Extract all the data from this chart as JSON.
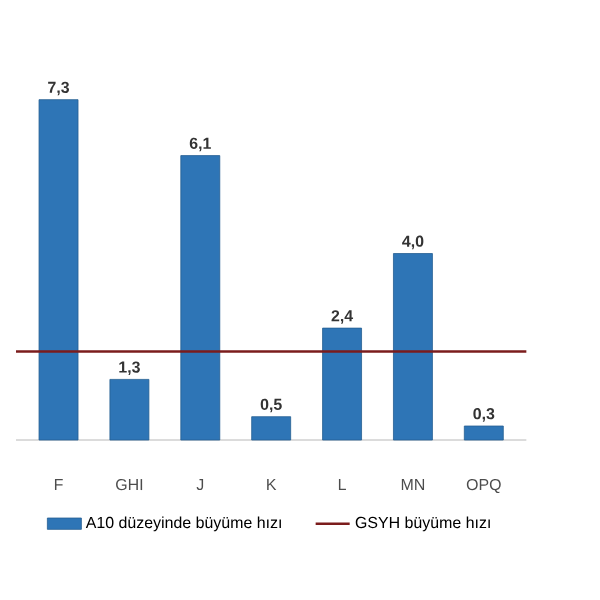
{
  "chart_data": {
    "type": "bar",
    "categories": [
      "F",
      "GHI",
      "J",
      "K",
      "L",
      "MN",
      "OPQ"
    ],
    "series": [
      {
        "name": "A10 düzeyinde büyüme hızı",
        "color": "#2e75b6",
        "values": [
          7.3,
          1.3,
          6.1,
          0.5,
          2.4,
          4.0,
          0.3
        ],
        "value_labels": [
          "7,3",
          "1,3",
          "6,1",
          "0,5",
          "2,4",
          "4,0",
          "0,3"
        ]
      }
    ],
    "ref_lines": [
      {
        "axis": "y",
        "value": 1.9,
        "label": "GSYH büyüme hızı",
        "color": "#7b1c1c"
      }
    ],
    "tick_labels": "x",
    "legend": "bottom"
  }
}
